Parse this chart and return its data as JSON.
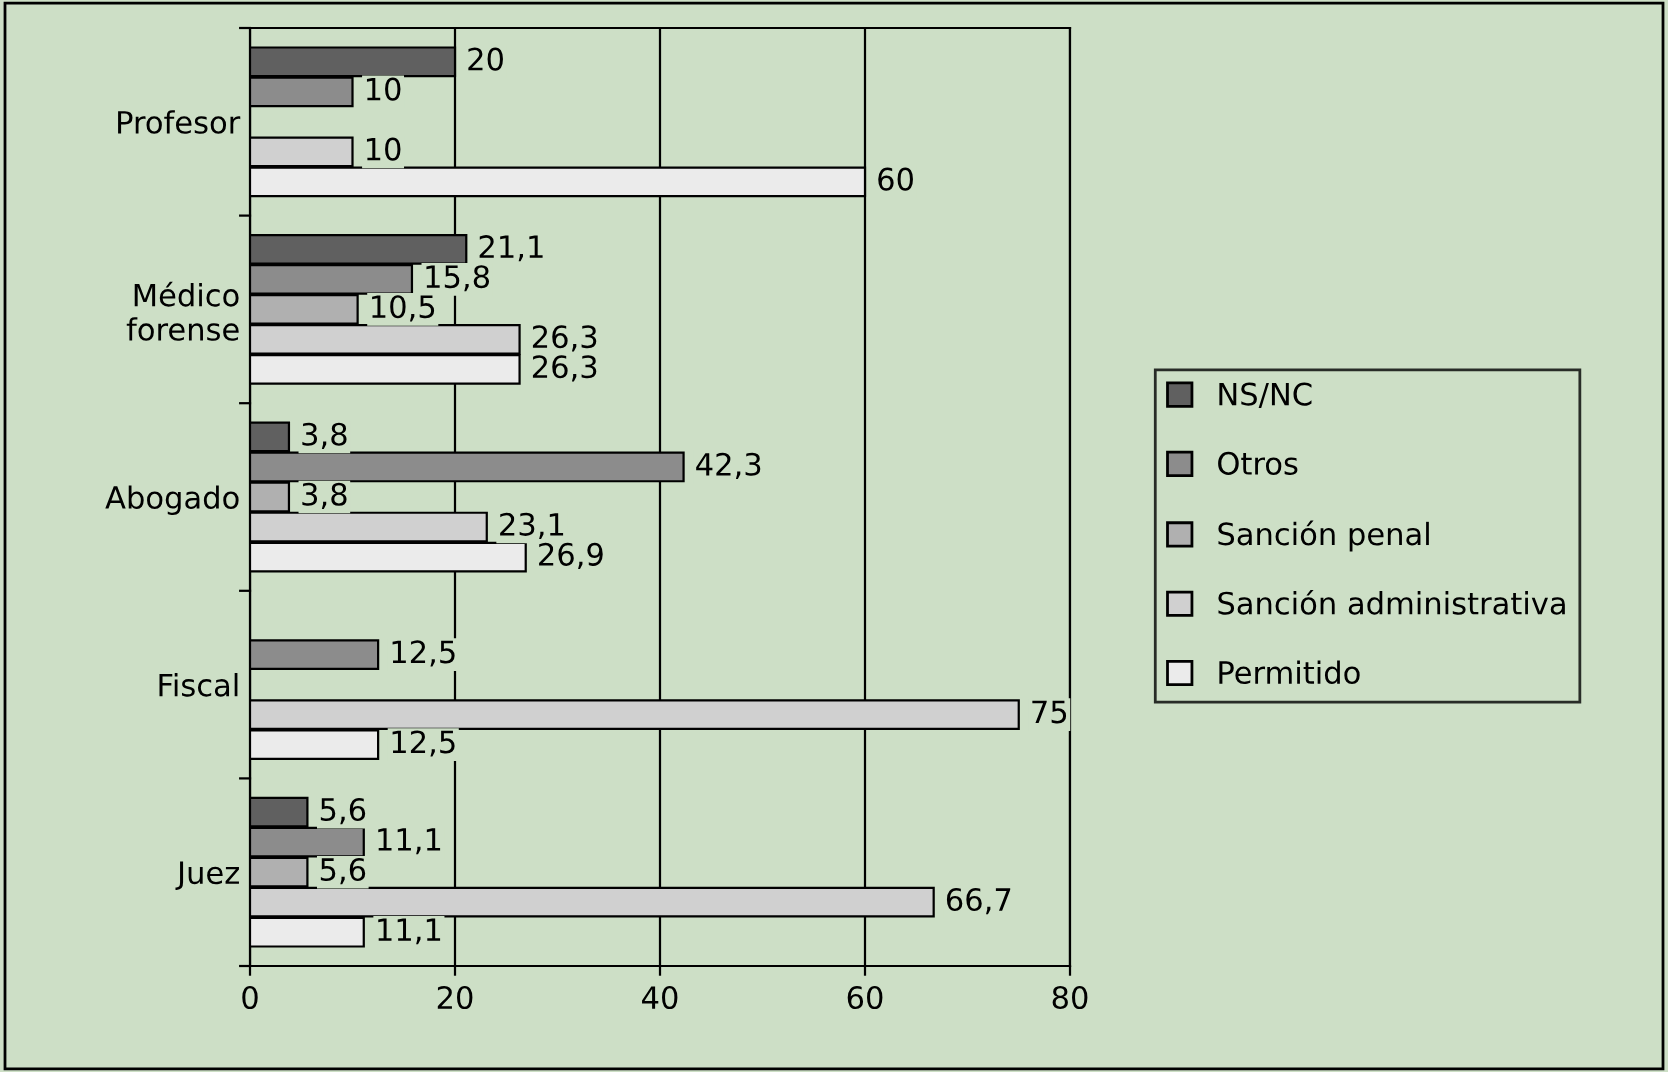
{
  "chart_data": {
    "type": "bar",
    "orientation": "horizontal",
    "categories": [
      "Profesor",
      "Médico\nforense",
      "Abogado",
      "Fiscal",
      "Juez"
    ],
    "series": [
      {
        "name": "NS/NC",
        "color": "#606060",
        "values": [
          20,
          21.1,
          3.8,
          null,
          5.6
        ],
        "value_labels": [
          "20",
          "21,1",
          "3,8",
          null,
          "5,6"
        ]
      },
      {
        "name": "Otros",
        "color": "#8c8c8c",
        "values": [
          10,
          15.8,
          42.3,
          12.5,
          11.1
        ],
        "value_labels": [
          "10",
          "15,8",
          "42,3",
          "12,5",
          "11,1"
        ]
      },
      {
        "name": "Sanción penal",
        "color": "#b0b0b0",
        "values": [
          null,
          10.5,
          3.8,
          null,
          5.6
        ],
        "value_labels": [
          null,
          "10,5",
          "3,8",
          null,
          "5,6"
        ]
      },
      {
        "name": "Sanción administrativa",
        "color": "#d0d0d0",
        "values": [
          10,
          26.3,
          23.1,
          75,
          66.7
        ],
        "value_labels": [
          "10",
          "26,3",
          "23,1",
          "75",
          "66,7"
        ]
      },
      {
        "name": "Permitido",
        "color": "#ebebeb",
        "values": [
          60,
          26.3,
          26.9,
          12.5,
          11.1
        ],
        "value_labels": [
          "60",
          "26,3",
          "26,9",
          "12,5",
          "11,1"
        ]
      }
    ],
    "xlim": [
      0,
      80
    ],
    "xticks": [
      0,
      20,
      40,
      60,
      80
    ],
    "grid": "x",
    "legend": "right"
  }
}
